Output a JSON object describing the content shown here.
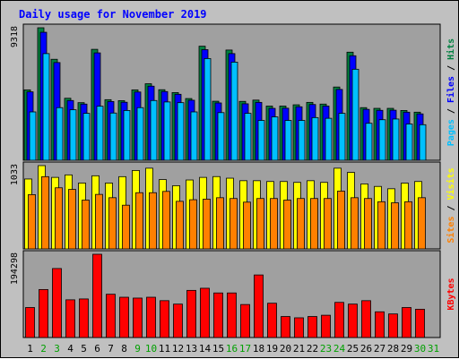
{
  "chart_data": {
    "type": "bar",
    "title": "Daily usage for November 2019",
    "categories": [
      "1",
      "2",
      "3",
      "4",
      "5",
      "6",
      "7",
      "8",
      "9",
      "10",
      "11",
      "12",
      "13",
      "14",
      "15",
      "16",
      "17",
      "18",
      "19",
      "20",
      "21",
      "22",
      "23",
      "24",
      "25",
      "26",
      "27",
      "28",
      "29",
      "30",
      "31"
    ],
    "weekend_days": [
      "2",
      "3",
      "9",
      "10",
      "16",
      "17",
      "23",
      "24",
      "30",
      "31"
    ],
    "panels": [
      {
        "id": "top",
        "ymax_label": "9318",
        "ymax": 9318,
        "series": [
          {
            "name": "Hits",
            "color": "#008040",
            "values": [
              4950,
              9318,
              7100,
              4360,
              4050,
              7800,
              4260,
              4190,
              4950,
              5380,
              4960,
              4760,
              4340,
              8020,
              4150,
              7750,
              4140,
              4230,
              3810,
              3810,
              3900,
              4070,
              3950,
              5150,
              7600,
              3700,
              3650,
              3650,
              3500,
              3380,
              0
            ]
          },
          {
            "name": "Files",
            "color": "#0000ff",
            "values": [
              4810,
              9000,
              6870,
              4200,
              3950,
              7550,
              4130,
              4080,
              4800,
              5210,
              4830,
              4640,
              4220,
              7780,
              4030,
              7500,
              3970,
              4070,
              3650,
              3660,
              3760,
              3920,
              3810,
              4980,
              7350,
              3580,
              3510,
              3520,
              3380,
              3260,
              0
            ]
          },
          {
            "name": "Pages",
            "color": "#00c0ff",
            "values": [
              3400,
              7500,
              3700,
              3550,
              3300,
              3800,
              3320,
              3500,
              3700,
              4200,
              4100,
              4050,
              3400,
              7150,
              3350,
              6900,
              3300,
              2800,
              3050,
              2800,
              2800,
              3000,
              2950,
              3300,
              6400,
              2600,
              2850,
              2900,
              2550,
              2500,
              0
            ]
          }
        ]
      },
      {
        "id": "middle",
        "ymax_label": "1033",
        "ymax": 1033,
        "series": [
          {
            "name": "Visits",
            "color": "#ffff00",
            "values": [
              867,
              1033,
              887,
              918,
              817,
              907,
              817,
              896,
              973,
              1001,
              860,
              784,
              855,
              887,
              897,
              877,
              846,
              846,
              836,
              836,
              825,
              846,
              825,
              1001,
              949,
              806,
              775,
              746,
              816,
              836,
              0
            ]
          },
          {
            "name": "Sites",
            "color": "#ff8000",
            "values": [
              673,
              896,
              758,
              738,
              605,
              676,
              635,
              542,
              697,
              697,
              713,
              590,
              610,
              617,
              635,
              625,
              580,
              625,
              625,
              605,
              625,
              625,
              625,
              717,
              635,
              625,
              585,
              572,
              585,
              635,
              0
            ]
          }
        ]
      },
      {
        "id": "bottom",
        "ymax_label": "194298",
        "ymax": 194298,
        "series": [
          {
            "name": "KBytes",
            "color": "#ff0000",
            "values": [
              70000,
              112000,
              161000,
              88000,
              90000,
              194298,
              101000,
              94000,
              92000,
              94000,
              86000,
              78000,
              110000,
              115000,
              104000,
              104000,
              77000,
              146000,
              80000,
              49000,
              46000,
              49000,
              52000,
              82000,
              78000,
              86000,
              60000,
              55000,
              70000,
              66000,
              0
            ]
          }
        ]
      }
    ],
    "right_labels": {
      "top": [
        {
          "text": "Pages",
          "color": "#00c0ff"
        },
        {
          "text": " / ",
          "color": "#000000"
        },
        {
          "text": "Files",
          "color": "#0000ff"
        },
        {
          "text": " / ",
          "color": "#000000"
        },
        {
          "text": "Hits",
          "color": "#008040"
        }
      ],
      "middle": [
        {
          "text": "Sites",
          "color": "#ff8000"
        },
        {
          "text": " / ",
          "color": "#000000"
        },
        {
          "text": "Visits",
          "color": "#ffff00"
        }
      ],
      "bottom": [
        {
          "text": "KBytes",
          "color": "#ff0000"
        }
      ]
    },
    "colors": {
      "background": "#c0c0c0",
      "plot_bg": "#a0a0a0",
      "title": "#0000ff",
      "weekday_label": "#000000",
      "weekend_label": "#00a000"
    }
  }
}
